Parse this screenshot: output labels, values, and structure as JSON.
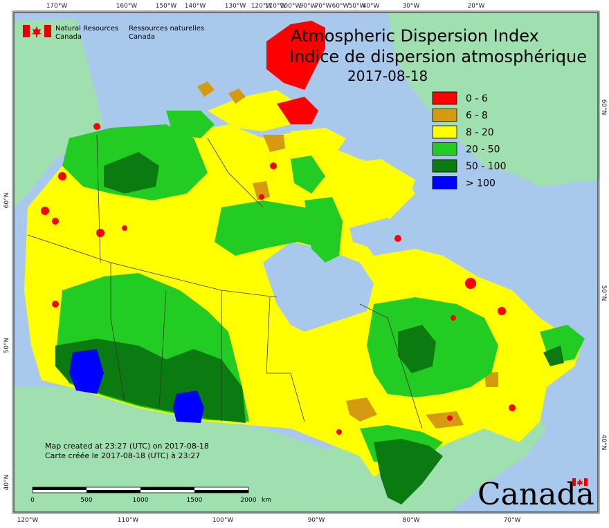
{
  "map": {
    "title_en": "Atmospheric Dispersion Index",
    "title_fr": "Indice de dispersion atmosphérique",
    "date": "2017-08-18",
    "agency": {
      "name_en_line1": "Natural Resources",
      "name_en_line2": "Canada",
      "name_fr_line1": "Ressources naturelles",
      "name_fr_line2": "Canada"
    },
    "wordmark": "Canada",
    "created_en": "Map created at 23:27 (UTC) on 2017-08-18",
    "created_fr": "Carte créée le 2017-08-18 (UTC) à 23:27",
    "legend": [
      {
        "label": "0 - 6",
        "color": "#ff0000"
      },
      {
        "label": "6 - 8",
        "color": "#d69a10"
      },
      {
        "label": "8 - 20",
        "color": "#ffff00"
      },
      {
        "label": "20 - 50",
        "color": "#22cc22"
      },
      {
        "label": "50 - 100",
        "color": "#0b7a10"
      },
      {
        "label": "> 100",
        "color": "#0000ff"
      }
    ],
    "top_ticks": [
      "170°W",
      "160°W",
      "150°W",
      "140°W",
      "130°W",
      "120°W",
      "110°W",
      "100°W",
      "90°W",
      "80°W",
      "70°W",
      "60°W",
      "50°W",
      "40°W",
      "30°W",
      "20°W"
    ],
    "bottom_ticks": [
      "120°W",
      "110°W",
      "100°W",
      "90°W",
      "80°W",
      "70°W"
    ],
    "left_ticks": [
      "60°N",
      "50°N",
      "40°N"
    ],
    "right_ticks": [
      "60°N",
      "50°N",
      "40°N"
    ],
    "scale": {
      "labels": [
        "0",
        "500",
        "1000",
        "1500",
        "2000"
      ],
      "unit": "km"
    },
    "colors": {
      "ocean": "#a8c8ec",
      "land_outside": "#a0e0b0"
    }
  }
}
